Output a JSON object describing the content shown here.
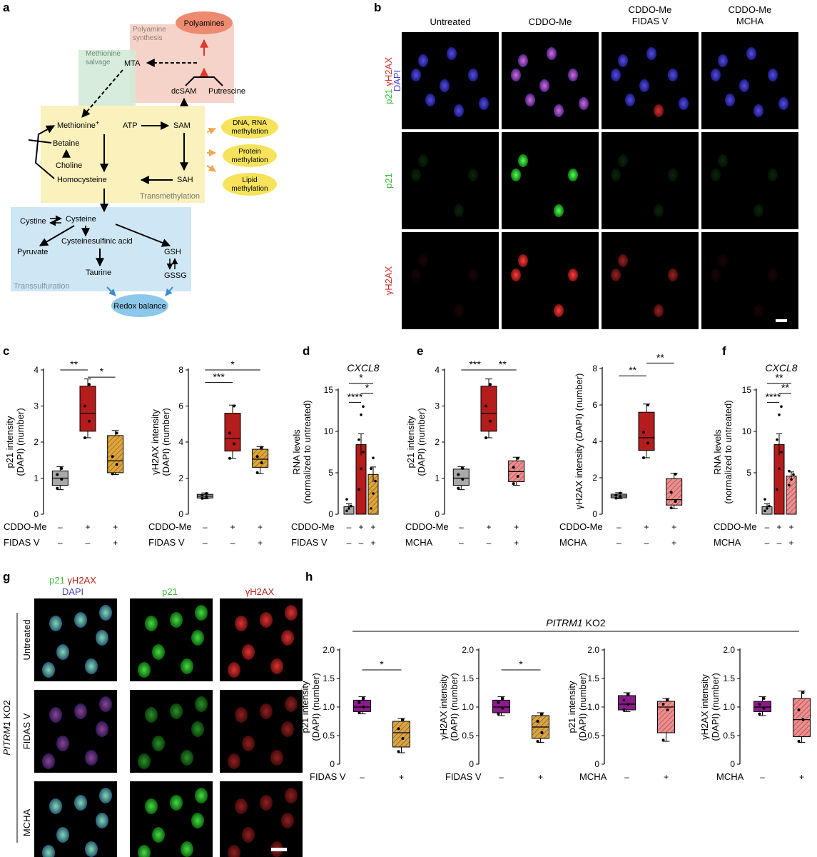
{
  "panel_letters": {
    "a": "a",
    "b": "b",
    "c": "c",
    "d": "d",
    "e": "e",
    "f": "f",
    "g": "g",
    "h": "h"
  },
  "pathway": {
    "polyamines": "Polyamines",
    "polyamine_synthesis": "Polyamine\nsynthesis",
    "methionine_salvage": "Methionine\nsalvage",
    "mta": "MTA",
    "dcsam": "dcSAM",
    "putrescine": "Putrescine",
    "methionine": "Methionine",
    "methionine_plus": "+",
    "atp": "ATP",
    "sam": "SAM",
    "betaine": "Betaine",
    "choline": "Choline",
    "homocysteine": "Homocysteine",
    "sah": "SAH",
    "transmethylation": "Transmethylation",
    "dna_rna": "DNA, RNA\nmethylation",
    "protein_meth": "Protein\nmethylation",
    "lipid_meth": "Lipid\nmethylation",
    "cystine": "Cystine",
    "cysteine": "Cysteine",
    "pyruvate": "Pyruvate",
    "csa": "Cysteinesulfinic acid",
    "gsh": "GSH",
    "taurine": "Taurine",
    "gssg": "GSSG",
    "transsulfuration": "Transsulfuration",
    "redox": "Redox balance",
    "colors": {
      "polyamine_box": "#f6d3c8",
      "salvage_box": "#d3ead7",
      "transmeth_box": "#fbf1bd",
      "transsulf_box": "#cfe6f5",
      "polyamines_oval": "#ee8a70",
      "meth_oval": "#f6e25b",
      "redox_oval": "#8cc8ea",
      "orange_arrow": "#f0a64c",
      "red_arrow": "#e0382c",
      "blue_arrow": "#3b8fd1"
    }
  },
  "micro_b": {
    "cols": [
      "Untreated",
      "CDDO-Me",
      "CDDO-Me\nFIDAS V",
      "CDDO-Me\nMCHA"
    ],
    "rows": [
      {
        "label_parts": [
          {
            "text": "p21",
            "color": "#3fbf3f"
          },
          {
            "text": " γH2AX",
            "color": "#d92b2b"
          }
        ],
        "label2": "DAPI",
        "label2_color": "#4040d0"
      },
      {
        "label_parts": [
          {
            "text": "p21",
            "color": "#3fbf3f"
          }
        ]
      },
      {
        "label_parts": [
          {
            "text": "γH2AX",
            "color": "#d92b2b"
          }
        ]
      }
    ]
  },
  "micro_g": {
    "cols": [
      {
        "parts": [
          {
            "text": "p21",
            "color": "#3fbf3f"
          },
          {
            "text": " γH2AX",
            "color": "#c0201a"
          }
        ],
        "line2": "DAPI",
        "line2_color": "#4444bb"
      },
      {
        "parts": [
          {
            "text": "p21",
            "color": "#3fbf3f"
          }
        ]
      },
      {
        "parts": [
          {
            "text": "γH2AX",
            "color": "#c0201a"
          }
        ]
      }
    ],
    "rows": [
      "Untreated",
      "FIDAS V",
      "MCHA"
    ],
    "side_label_italic": "PITRM1",
    "side_label_rest": " KO2"
  },
  "h_header_italic": "PITRM1",
  "h_header_rest": " KO2",
  "chart_data": [
    {
      "id": "c1",
      "type": "box",
      "ylabel": [
        "p21 intensity",
        "(DAPI) (number)"
      ],
      "yticks": [
        "0",
        "1",
        "2",
        "3",
        "4"
      ],
      "ylim": [
        0,
        4
      ],
      "boxes": [
        {
          "q1": 0.8,
          "med": 1.0,
          "q3": 1.2,
          "min": 0.68,
          "max": 1.32,
          "points": [
            0.72,
            0.97,
            1.1,
            1.27
          ],
          "fill": "#a9a9a9"
        },
        {
          "q1": 2.3,
          "med": 2.8,
          "q3": 3.55,
          "min": 2.12,
          "max": 3.75,
          "points": [
            2.12,
            2.58,
            3.0,
            3.6
          ],
          "fill": "#b51c1c"
        },
        {
          "q1": 1.15,
          "med": 1.48,
          "q3": 2.18,
          "min": 1.1,
          "max": 2.32,
          "points": [
            1.12,
            1.38,
            1.6,
            2.25
          ],
          "fill": "#e0a53a",
          "hatch": true
        }
      ],
      "rowlabels": [
        {
          "name": "CDDO-Me",
          "vals": [
            "–",
            "+",
            "+"
          ]
        },
        {
          "name": "FIDAS V",
          "vals": [
            "–",
            "–",
            "+"
          ]
        }
      ],
      "sig": [
        {
          "from": 0,
          "to": 1,
          "y": 4.0,
          "text": "**"
        },
        {
          "from": 1,
          "to": 2,
          "y": 3.8,
          "text": "*"
        }
      ]
    },
    {
      "id": "c2",
      "type": "box",
      "ylabel": [
        "γH2AX intensity",
        "(DAPI) (number)"
      ],
      "yticks": [
        "0",
        "2",
        "4",
        "6",
        "8"
      ],
      "ylim": [
        0,
        8
      ],
      "boxes": [
        {
          "q1": 0.9,
          "med": 1.0,
          "q3": 1.1,
          "min": 0.85,
          "max": 1.18,
          "points": [
            0.88,
            0.98,
            1.05,
            1.15
          ],
          "fill": "#a9a9a9"
        },
        {
          "q1": 3.5,
          "med": 4.2,
          "q3": 5.6,
          "min": 3.1,
          "max": 6.05,
          "points": [
            3.1,
            3.9,
            4.5,
            6.0
          ],
          "fill": "#b51c1c"
        },
        {
          "q1": 2.6,
          "med": 3.05,
          "q3": 3.6,
          "min": 2.25,
          "max": 3.75,
          "points": [
            2.3,
            2.85,
            3.2,
            3.7
          ],
          "fill": "#e0a53a",
          "hatch": true
        }
      ],
      "rowlabels": [
        {
          "name": "CDDO-Me",
          "vals": [
            "–",
            "+",
            "+"
          ]
        },
        {
          "name": "FIDAS V",
          "vals": [
            "–",
            "–",
            "+"
          ]
        }
      ],
      "sig": [
        {
          "from": 0,
          "to": 1,
          "y": 7.3,
          "text": "***"
        },
        {
          "from": 0,
          "to": 2,
          "y": 8.0,
          "text": "*"
        }
      ]
    },
    {
      "id": "d",
      "type": "bar",
      "title": "CXCL8",
      "ylabel": [
        "RNA levels",
        "(normalized to untreated)"
      ],
      "yticks": [
        "0",
        "5",
        "10",
        "15"
      ],
      "ylim": [
        0,
        15
      ],
      "bars": [
        {
          "value": 0.9,
          "err": 0.35,
          "fill": "#a9a9a9",
          "points": [
            0.4,
            0.7,
            1.0,
            1.8
          ]
        },
        {
          "value": 8.4,
          "err": 1.3,
          "fill": "#b51c1c",
          "points": [
            3.0,
            5.5,
            7.5,
            9.0,
            12.0,
            13.0
          ]
        },
        {
          "value": 4.8,
          "err": 0.9,
          "fill": "#e0a53a",
          "hatch": true,
          "points": [
            0.7,
            2.5,
            4.0,
            5.5,
            6.8
          ]
        }
      ],
      "rowlabels": [
        {
          "name": "CDDO-Me",
          "vals": [
            "–",
            "+",
            "+"
          ]
        },
        {
          "name": "FIDAS V",
          "vals": [
            "–",
            "–",
            "+"
          ]
        }
      ],
      "sig": [
        {
          "from": 0,
          "to": 1,
          "y": 13.5,
          "text": "****"
        },
        {
          "from": 1,
          "to": 2,
          "y": 14.6,
          "text": "*"
        },
        {
          "from": 0,
          "to": 2,
          "y": 15.8,
          "text": "*"
        }
      ]
    },
    {
      "id": "e1",
      "type": "box",
      "ylabel": [
        "p21 intensity",
        "(DAPI) (number)"
      ],
      "yticks": [
        "0",
        "1",
        "2",
        "3",
        "4"
      ],
      "ylim": [
        0,
        4
      ],
      "boxes": [
        {
          "q1": 0.8,
          "med": 1.0,
          "q3": 1.25,
          "min": 0.68,
          "max": 1.32,
          "points": [
            0.72,
            0.97,
            1.1,
            1.27
          ],
          "fill": "#a9a9a9"
        },
        {
          "q1": 2.3,
          "med": 2.8,
          "q3": 3.55,
          "min": 2.12,
          "max": 3.75,
          "points": [
            2.12,
            2.58,
            3.0,
            3.6
          ],
          "fill": "#b51c1c"
        },
        {
          "q1": 0.9,
          "med": 1.18,
          "q3": 1.48,
          "min": 0.8,
          "max": 1.58,
          "points": [
            0.85,
            1.05,
            1.3,
            1.55
          ],
          "fill": "#f08c8c",
          "hatch": true
        }
      ],
      "rowlabels": [
        {
          "name": "CDDO-Me",
          "vals": [
            "–",
            "+",
            "+"
          ]
        },
        {
          "name": "MCHA",
          "vals": [
            "–",
            "–",
            "+"
          ]
        }
      ],
      "sig": [
        {
          "from": 0,
          "to": 1,
          "y": 4.0,
          "text": "***"
        },
        {
          "from": 1,
          "to": 2,
          "y": 4.0,
          "text": "**"
        }
      ]
    },
    {
      "id": "e2",
      "type": "box",
      "ylabel": [
        "γH2AX intensity (DAPI) (number)"
      ],
      "yticks": [
        "0",
        "2",
        "4",
        "6",
        "8"
      ],
      "ylim": [
        0,
        8
      ],
      "boxes": [
        {
          "q1": 0.9,
          "med": 1.0,
          "q3": 1.1,
          "min": 0.85,
          "max": 1.18,
          "points": [
            0.88,
            0.98,
            1.05,
            1.15
          ],
          "fill": "#a9a9a9"
        },
        {
          "q1": 3.5,
          "med": 4.2,
          "q3": 5.6,
          "min": 3.1,
          "max": 6.05,
          "points": [
            3.1,
            3.9,
            4.5,
            6.0
          ],
          "fill": "#b51c1c"
        },
        {
          "q1": 0.5,
          "med": 0.8,
          "q3": 1.95,
          "min": 0.3,
          "max": 2.25,
          "points": [
            0.35,
            0.7,
            1.2,
            2.2
          ],
          "fill": "#f08c8c",
          "hatch": true
        }
      ],
      "rowlabels": [
        {
          "name": "CDDO-Me",
          "vals": [
            "–",
            "+",
            "+"
          ]
        },
        {
          "name": "MCHA",
          "vals": [
            "–",
            "–",
            "+"
          ]
        }
      ],
      "sig": [
        {
          "from": 0,
          "to": 1,
          "y": 7.6,
          "text": "**"
        },
        {
          "from": 1,
          "to": 2,
          "y": 8.3,
          "text": "**"
        }
      ]
    },
    {
      "id": "f",
      "type": "bar",
      "title": "CXCL8",
      "ylabel": [
        "RNA levels",
        "(normalized to untreated)"
      ],
      "yticks": [
        "5",
        "10",
        "15"
      ],
      "ylim": [
        0,
        15
      ],
      "bars": [
        {
          "value": 0.9,
          "err": 0.35,
          "fill": "#a9a9a9",
          "points": [
            0.4,
            0.7,
            1.0,
            1.8
          ]
        },
        {
          "value": 8.4,
          "err": 1.3,
          "fill": "#b51c1c",
          "points": [
            3.0,
            5.5,
            7.5,
            9.0,
            12.0,
            13.0
          ]
        },
        {
          "value": 4.6,
          "err": 0.5,
          "fill": "#f08c8c",
          "hatch": true,
          "points": [
            3.5,
            4.2,
            4.8,
            5.2
          ]
        }
      ],
      "rowlabels": [
        {
          "name": "CDDO-Me",
          "vals": [
            "–",
            "+",
            "+"
          ]
        },
        {
          "name": "MCHA",
          "vals": [
            "–",
            "–",
            "+"
          ]
        }
      ],
      "sig": [
        {
          "from": 0,
          "to": 1,
          "y": 13.5,
          "text": "****"
        },
        {
          "from": 1,
          "to": 2,
          "y": 14.6,
          "text": "**"
        },
        {
          "from": 0,
          "to": 2,
          "y": 15.8,
          "text": "**"
        }
      ]
    },
    {
      "id": "h1",
      "type": "box",
      "ylabel": [
        "p21 intensity",
        "(DAPI) (number)"
      ],
      "yticks": [
        "0",
        "0.5",
        "1.0",
        "1.5",
        "2.0"
      ],
      "ylim": [
        0,
        2
      ],
      "boxes": [
        {
          "q1": 0.92,
          "med": 1.0,
          "q3": 1.12,
          "min": 0.88,
          "max": 1.18,
          "points": [
            0.9,
            1.0,
            1.08,
            1.15
          ],
          "fill": "#8b1a8b"
        },
        {
          "q1": 0.3,
          "med": 0.55,
          "q3": 0.75,
          "min": 0.2,
          "max": 0.8,
          "points": [
            0.22,
            0.45,
            0.62,
            0.78
          ],
          "fill": "#d9a443",
          "hatch": true
        }
      ],
      "rowlabels": [
        {
          "name": "FIDAS V",
          "vals": [
            "–",
            "+"
          ]
        }
      ],
      "sig": [
        {
          "from": 0,
          "to": 1,
          "y": 1.65,
          "text": "*"
        }
      ]
    },
    {
      "id": "h2",
      "type": "box",
      "ylabel": [
        "γH2AX intensity",
        "(DAPI) (number)"
      ],
      "yticks": [
        "0",
        "0.5",
        "1.0",
        "1.5",
        "2.0"
      ],
      "ylim": [
        0,
        2
      ],
      "boxes": [
        {
          "q1": 0.9,
          "med": 1.0,
          "q3": 1.12,
          "min": 0.85,
          "max": 1.18,
          "points": [
            0.88,
            0.98,
            1.08,
            1.15
          ],
          "fill": "#8b1a8b"
        },
        {
          "q1": 0.45,
          "med": 0.65,
          "q3": 0.85,
          "min": 0.38,
          "max": 0.9,
          "points": [
            0.4,
            0.55,
            0.75,
            0.88
          ],
          "fill": "#d9a443",
          "hatch": true
        }
      ],
      "rowlabels": [
        {
          "name": "FIDAS V",
          "vals": [
            "–",
            "+"
          ]
        }
      ],
      "sig": [
        {
          "from": 0,
          "to": 1,
          "y": 1.65,
          "text": "*"
        }
      ]
    },
    {
      "id": "h3",
      "type": "box",
      "ylabel": [
        "p21 intensity",
        "(DAPI) (number)"
      ],
      "yticks": [
        "0",
        "0.5",
        "1.0",
        "1.5",
        "2.0"
      ],
      "ylim": [
        0,
        2
      ],
      "boxes": [
        {
          "q1": 0.95,
          "med": 1.05,
          "q3": 1.2,
          "min": 0.92,
          "max": 1.25,
          "points": [
            0.95,
            1.05,
            1.12,
            1.22
          ],
          "fill": "#8b1a8b"
        },
        {
          "q1": 0.55,
          "med": 1.0,
          "q3": 1.1,
          "min": 0.4,
          "max": 1.15,
          "points": [
            0.42,
            0.95,
            1.05,
            1.12
          ],
          "fill": "#f08c8c",
          "hatch": true
        }
      ],
      "rowlabels": [
        {
          "name": "MCHA",
          "vals": [
            "–",
            "+"
          ]
        }
      ],
      "sig": []
    },
    {
      "id": "h4",
      "type": "box",
      "ylabel": [
        "γH2AX intensity",
        "(DAPI) (number)"
      ],
      "yticks": [
        "0",
        "0.5",
        "1.0",
        "1.5",
        "2.0"
      ],
      "ylim": [
        0,
        2
      ],
      "boxes": [
        {
          "q1": 0.92,
          "med": 1.0,
          "q3": 1.1,
          "min": 0.85,
          "max": 1.18,
          "points": [
            0.88,
            0.98,
            1.05,
            1.15
          ],
          "fill": "#8b1a8b"
        },
        {
          "q1": 0.48,
          "med": 0.78,
          "q3": 1.15,
          "min": 0.38,
          "max": 1.28,
          "points": [
            0.4,
            0.78,
            0.95,
            1.25
          ],
          "fill": "#f08c8c",
          "hatch": true
        }
      ],
      "rowlabels": [
        {
          "name": "MCHA",
          "vals": [
            "–",
            "+"
          ]
        }
      ],
      "sig": []
    }
  ]
}
